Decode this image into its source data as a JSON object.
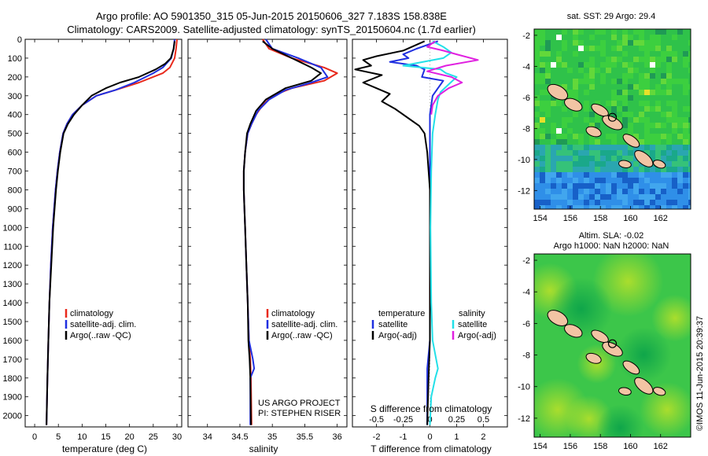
{
  "header": {
    "line1": "Argo profile: AO 5901350_315 05-Jun-2015 20150606_327 7.183S 158.838E",
    "line2": "Climatology: CARS2009. Satellite-adjusted climatology: synTS_20150604.nc (1.7d earlier)"
  },
  "colors": {
    "climatology": "#e8291c",
    "satellite": "#1f2fe0",
    "argo": "#000000",
    "sal_satellite": "#22e0e8",
    "sal_argo": "#e020e0",
    "land": "#f2c4a4"
  },
  "depth_ticks": [
    "0",
    "100",
    "200",
    "300",
    "400",
    "500",
    "600",
    "700",
    "800",
    "900",
    "1000",
    "1100",
    "1200",
    "1300",
    "1400",
    "1500",
    "1600",
    "1700",
    "1800",
    "1900",
    "2000"
  ],
  "chart_data": [
    {
      "type": "line",
      "xlabel": "temperature (deg C)",
      "xlim": [
        -2,
        31
      ],
      "ylim": [
        2060,
        0
      ],
      "x_ticks": [
        "0",
        "5",
        "10",
        "15",
        "20",
        "25",
        "30"
      ],
      "legend": [
        "climatology",
        "satellite-adj. clim.",
        "Argo(..raw -QC)"
      ],
      "series": [
        {
          "name": "climatology",
          "points": [
            [
              30,
              0
            ],
            [
              29.8,
              50
            ],
            [
              29.5,
              100
            ],
            [
              28.5,
              150
            ],
            [
              27,
              180
            ],
            [
              22,
              230
            ],
            [
              17,
              270
            ],
            [
              13,
              300
            ],
            [
              10,
              350
            ],
            [
              8,
              400
            ],
            [
              6.8,
              450
            ],
            [
              6,
              500
            ],
            [
              5.3,
              600
            ],
            [
              4.8,
              700
            ],
            [
              4.4,
              800
            ],
            [
              4.1,
              900
            ],
            [
              3.8,
              1000
            ],
            [
              3.4,
              1200
            ],
            [
              3.1,
              1400
            ],
            [
              2.9,
              1600
            ],
            [
              2.7,
              1800
            ],
            [
              2.5,
              2050
            ]
          ]
        },
        {
          "name": "satellite-adj. clim.",
          "points": [
            [
              29.5,
              0
            ],
            [
              29.3,
              50
            ],
            [
              28.8,
              100
            ],
            [
              27,
              150
            ],
            [
              25,
              180
            ],
            [
              21,
              230
            ],
            [
              17,
              270
            ],
            [
              13,
              300
            ],
            [
              10,
              350
            ],
            [
              8,
              400
            ],
            [
              6.8,
              450
            ],
            [
              6,
              500
            ],
            [
              5.3,
              600
            ],
            [
              4.8,
              700
            ],
            [
              4.4,
              800
            ],
            [
              4.1,
              900
            ],
            [
              3.8,
              1000
            ],
            [
              3.4,
              1200
            ],
            [
              3.1,
              1400
            ],
            [
              2.9,
              1600
            ],
            [
              2.7,
              1800
            ],
            [
              2.5,
              2050
            ]
          ]
        },
        {
          "name": "Argo(..raw -QC)",
          "points": [
            [
              29.5,
              10
            ],
            [
              29.3,
              50
            ],
            [
              28.7,
              100
            ],
            [
              27.5,
              130
            ],
            [
              25.5,
              160
            ],
            [
              22,
              200
            ],
            [
              18,
              230
            ],
            [
              15,
              260
            ],
            [
              12,
              300
            ],
            [
              10,
              350
            ],
            [
              8.3,
              400
            ],
            [
              7,
              450
            ],
            [
              6.1,
              500
            ],
            [
              5.4,
              600
            ],
            [
              4.9,
              700
            ],
            [
              4.5,
              800
            ],
            [
              4.2,
              900
            ],
            [
              3.9,
              1000
            ],
            [
              3.5,
              1200
            ],
            [
              3.1,
              1400
            ],
            [
              2.9,
              1600
            ],
            [
              2.7,
              1800
            ],
            [
              2.5,
              2050
            ]
          ]
        }
      ]
    },
    {
      "type": "line",
      "xlabel": "salinity",
      "xlim": [
        33.7,
        36.15
      ],
      "ylim": [
        2060,
        0
      ],
      "x_ticks": [
        "34",
        "34.5",
        "35",
        "35.5",
        "36"
      ],
      "legend": [
        "climatology",
        "satellite-adj. clim.",
        "Argo(..raw -QC)"
      ],
      "series": [
        {
          "name": "climatology",
          "points": [
            [
              34.85,
              0
            ],
            [
              34.95,
              50
            ],
            [
              35.3,
              100
            ],
            [
              35.8,
              150
            ],
            [
              36.0,
              180
            ],
            [
              35.8,
              220
            ],
            [
              35.3,
              260
            ],
            [
              35.0,
              300
            ],
            [
              34.85,
              350
            ],
            [
              34.75,
              400
            ],
            [
              34.68,
              450
            ],
            [
              34.62,
              500
            ],
            [
              34.58,
              600
            ],
            [
              34.56,
              700
            ],
            [
              34.56,
              800
            ],
            [
              34.57,
              900
            ],
            [
              34.58,
              1000
            ],
            [
              34.6,
              1200
            ],
            [
              34.62,
              1400
            ],
            [
              34.64,
              1600
            ],
            [
              34.66,
              1700
            ],
            [
              34.67,
              1800
            ],
            [
              34.68,
              2050
            ]
          ]
        },
        {
          "name": "satellite-adj. clim.",
          "points": [
            [
              34.9,
              0
            ],
            [
              35.0,
              50
            ],
            [
              35.4,
              100
            ],
            [
              35.75,
              150
            ],
            [
              35.85,
              200
            ],
            [
              35.6,
              230
            ],
            [
              35.2,
              270
            ],
            [
              34.95,
              320
            ],
            [
              34.78,
              380
            ],
            [
              34.68,
              450
            ],
            [
              34.62,
              500
            ],
            [
              34.58,
              600
            ],
            [
              34.56,
              700
            ],
            [
              34.56,
              800
            ],
            [
              34.57,
              900
            ],
            [
              34.58,
              1000
            ],
            [
              34.6,
              1200
            ],
            [
              34.62,
              1400
            ],
            [
              34.64,
              1600
            ],
            [
              34.7,
              1700
            ],
            [
              34.72,
              1750
            ],
            [
              34.66,
              1800
            ],
            [
              34.66,
              2050
            ]
          ]
        },
        {
          "name": "Argo(..raw -QC)",
          "points": [
            [
              34.85,
              10
            ],
            [
              35.0,
              50
            ],
            [
              35.3,
              100
            ],
            [
              35.6,
              150
            ],
            [
              35.75,
              180
            ],
            [
              35.6,
              220
            ],
            [
              35.2,
              260
            ],
            [
              34.9,
              320
            ],
            [
              34.75,
              380
            ],
            [
              34.66,
              450
            ],
            [
              34.61,
              500
            ],
            [
              34.58,
              600
            ],
            [
              34.56,
              700
            ],
            [
              34.56,
              800
            ],
            [
              34.57,
              900
            ],
            [
              34.58,
              1000
            ],
            [
              34.6,
              1200
            ],
            [
              34.62,
              1400
            ],
            [
              34.63,
              1600
            ],
            [
              34.65,
              1700
            ],
            [
              34.66,
              1800
            ],
            [
              34.67,
              2050
            ]
          ]
        }
      ],
      "annotations": [
        "US ARGO PROJECT",
        "PI: STEPHEN RISER"
      ]
    },
    {
      "type": "line",
      "xlabel": "T difference from climatology",
      "top_label": "S difference from climatology",
      "xlim": [
        -2.9,
        2.9
      ],
      "ylim": [
        2060,
        0
      ],
      "x_ticks": [
        "-2",
        "-1",
        "0",
        "1",
        "2"
      ],
      "top_ticks": [
        "-0.5",
        "-0.25",
        "0",
        "0.25",
        "0.5"
      ],
      "legend_headers": [
        "temperature",
        "salinity"
      ],
      "legend": [
        "satellite",
        "Argo(-adj)",
        "satellite",
        "Argo(-adj)"
      ],
      "series": [
        {
          "name": "satellite",
          "points": [
            [
              0.3,
              10
            ],
            [
              -0.5,
              50
            ],
            [
              -1,
              80
            ],
            [
              -0.8,
              100
            ],
            [
              -1.5,
              120
            ],
            [
              -0.5,
              140
            ],
            [
              -0.2,
              160
            ],
            [
              -0.3,
              200
            ],
            [
              0.5,
              220
            ],
            [
              0.3,
              260
            ],
            [
              0.1,
              300
            ],
            [
              0,
              400
            ],
            [
              0,
              600
            ],
            [
              0,
              800
            ],
            [
              0,
              1000
            ],
            [
              0,
              1400
            ],
            [
              0,
              1600
            ],
            [
              -0.1,
              1750
            ],
            [
              -0.1,
              1900
            ],
            [
              -0.1,
              2050
            ]
          ]
        },
        {
          "name": "Argo(-adj)",
          "points": [
            [
              -0.2,
              10
            ],
            [
              -1,
              60
            ],
            [
              -2,
              90
            ],
            [
              -2.5,
              110
            ],
            [
              -2.2,
              140
            ],
            [
              -2.8,
              160
            ],
            [
              -1.8,
              190
            ],
            [
              -2.5,
              230
            ],
            [
              -2,
              260
            ],
            [
              -1.5,
              290
            ],
            [
              -1.8,
              330
            ],
            [
              -1.3,
              370
            ],
            [
              -0.8,
              420
            ],
            [
              -0.4,
              460
            ],
            [
              -0.2,
              500
            ],
            [
              -0.1,
              600
            ],
            [
              0,
              800
            ],
            [
              0,
              1000
            ],
            [
              0,
              1400
            ],
            [
              0,
              1600
            ],
            [
              -0.05,
              1800
            ],
            [
              -0.1,
              2050
            ]
          ]
        },
        {
          "name": "satellite",
          "points": [
            [
              0.1,
              10
            ],
            [
              0.5,
              40
            ],
            [
              0.8,
              70
            ],
            [
              0.5,
              100
            ],
            [
              -1,
              140
            ],
            [
              0.4,
              160
            ],
            [
              0.6,
              180
            ],
            [
              1.0,
              200
            ],
            [
              0.7,
              240
            ],
            [
              0.4,
              280
            ],
            [
              0.3,
              320
            ],
            [
              0.2,
              400
            ],
            [
              0.1,
              500
            ],
            [
              0.05,
              700
            ],
            [
              0.02,
              1000
            ],
            [
              0.05,
              1400
            ],
            [
              0.1,
              1600
            ],
            [
              0.3,
              1750
            ],
            [
              0.2,
              1800
            ],
            [
              0.05,
              1900
            ],
            [
              0,
              2050
            ]
          ]
        },
        {
          "name": "Argo(-adj)",
          "points": [
            [
              0.2,
              10
            ],
            [
              -0.1,
              40
            ],
            [
              0.5,
              60
            ],
            [
              1,
              80
            ],
            [
              1.8,
              110
            ],
            [
              0.6,
              140
            ],
            [
              -0.1,
              170
            ],
            [
              0.8,
              200
            ],
            [
              1.2,
              230
            ],
            [
              0.7,
              260
            ],
            [
              0.3,
              300
            ],
            [
              0.1,
              350
            ],
            [
              0.05,
              400
            ]
          ]
        }
      ]
    }
  ],
  "maps": [
    {
      "title": [
        "sat. SST: 29 Argo: 29.4"
      ],
      "y_ticks": [
        "-2",
        "-4",
        "-6",
        "-8",
        "-10",
        "-12"
      ],
      "x_ticks": [
        "154",
        "156",
        "158",
        "160",
        "162"
      ]
    },
    {
      "title": [
        "Altim. SLA: -0.02",
        "Argo h1000: NaN h2000: NaN"
      ],
      "y_ticks": [
        "-2",
        "-4",
        "-6",
        "-8",
        "-10",
        "-12"
      ],
      "x_ticks": [
        "154",
        "156",
        "158",
        "160",
        "162"
      ]
    }
  ],
  "footer": {
    "stamp": "©IMOS 11-Jun-2015 20:39:37"
  }
}
